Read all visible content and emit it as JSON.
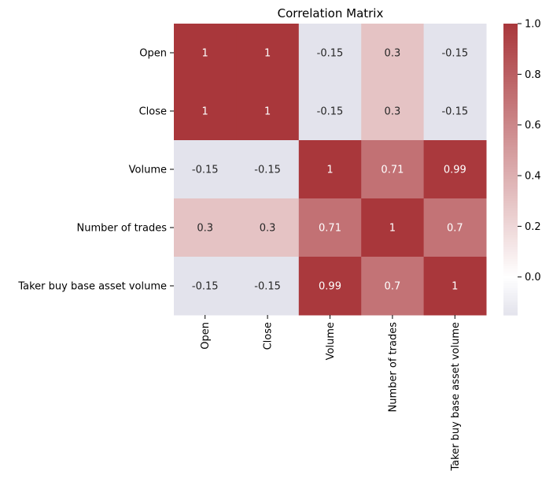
{
  "chart_data": {
    "type": "heatmap",
    "title": "Correlation Matrix",
    "row_labels": [
      "Open",
      "Close",
      "Volume",
      "Number of trades",
      "Taker buy base asset volume"
    ],
    "col_labels": [
      "Open",
      "Close",
      "Volume",
      "Number of trades",
      "Taker buy base asset volume"
    ],
    "values": [
      [
        1,
        1,
        -0.15,
        0.3,
        -0.15
      ],
      [
        1,
        1,
        -0.15,
        0.3,
        -0.15
      ],
      [
        -0.15,
        -0.15,
        1,
        0.71,
        0.99
      ],
      [
        0.3,
        0.3,
        0.71,
        1,
        0.7
      ],
      [
        -0.15,
        -0.15,
        0.99,
        0.7,
        1
      ]
    ],
    "annotations": [
      [
        "1",
        "1",
        "-0.15",
        "0.3",
        "-0.15"
      ],
      [
        "1",
        "1",
        "-0.15",
        "0.3",
        "-0.15"
      ],
      [
        "-0.15",
        "-0.15",
        "1",
        "0.71",
        "0.99"
      ],
      [
        "0.3",
        "0.3",
        "0.71",
        "1",
        "0.7"
      ],
      [
        "-0.15",
        "-0.15",
        "0.99",
        "0.7",
        "1"
      ]
    ],
    "colorbar": {
      "range": [
        -0.15,
        1
      ],
      "ticks": [
        0.0,
        0.2,
        0.4,
        0.6,
        0.8,
        1.0
      ],
      "tick_labels": [
        "0.0",
        "0.2",
        "0.4",
        "0.6",
        "0.8",
        "1.0"
      ],
      "colormap": "vlag (blue-white-red)",
      "colors": {
        "low": "#e3e3ec",
        "mid": "#ffffff",
        "high": "#a9373b"
      }
    }
  }
}
